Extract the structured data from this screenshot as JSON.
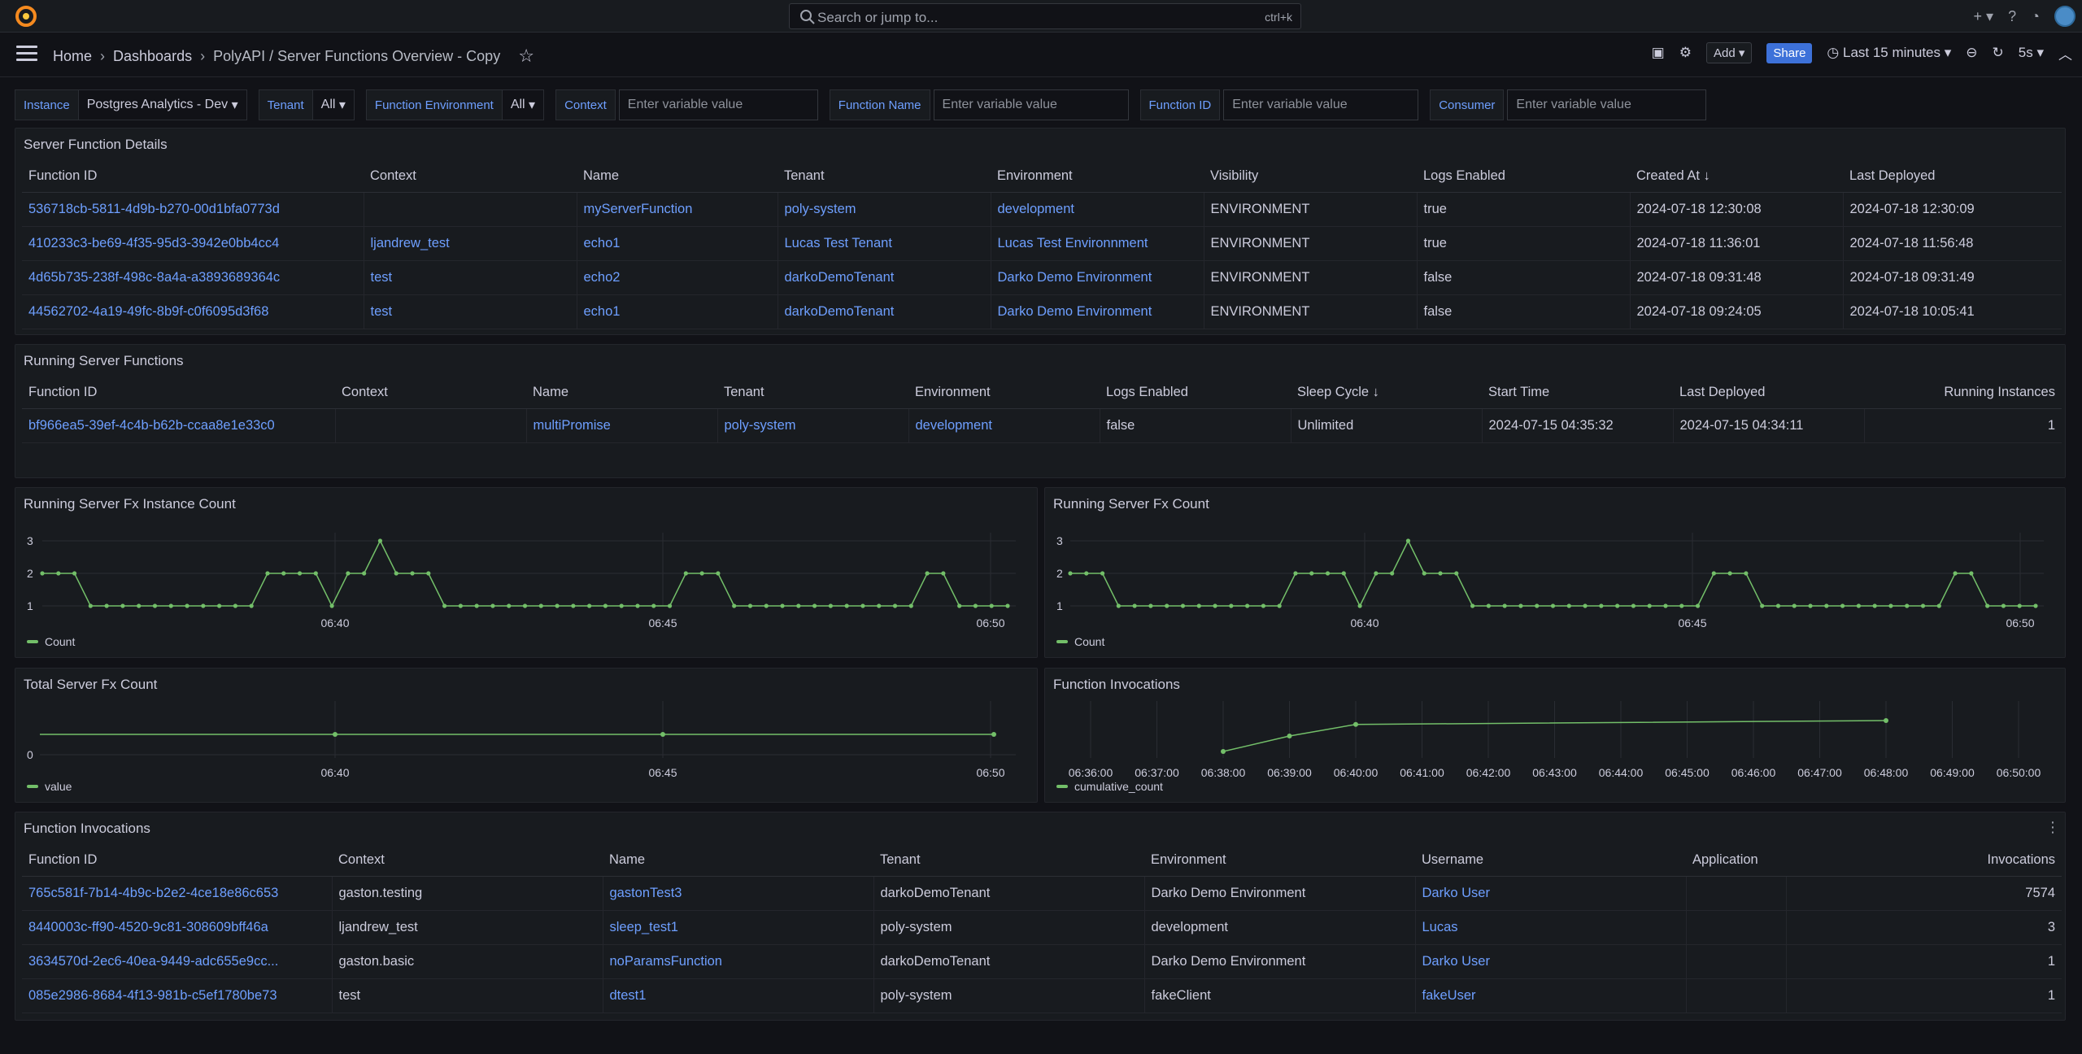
{
  "topbar": {
    "search_placeholder": "Search or jump to...",
    "search_shortcut": "ctrl+k"
  },
  "breadcrumb": {
    "home": "Home",
    "dashboards": "Dashboards",
    "current": "PolyAPI / Server Functions Overview - Copy"
  },
  "toolbar": {
    "add_label": "Add",
    "share_label": "Share",
    "time_range": "Last 15 minutes",
    "refresh_interval": "5s"
  },
  "variables": [
    {
      "label": "Instance",
      "value": "Postgres Analytics - Dev"
    },
    {
      "label": "Tenant",
      "value": "All"
    },
    {
      "label": "Function Environment",
      "value": "All"
    },
    {
      "label": "Context",
      "placeholder": "Enter variable value"
    },
    {
      "label": "Function Name",
      "placeholder": "Enter variable value"
    },
    {
      "label": "Function ID",
      "placeholder": "Enter variable value"
    },
    {
      "label": "Consumer",
      "placeholder": "Enter variable value"
    }
  ],
  "details": {
    "title": "Server Function Details",
    "columns": [
      "Function ID",
      "Context",
      "Name",
      "Tenant",
      "Environment",
      "Visibility",
      "Logs Enabled",
      "Created At",
      "Last Deployed"
    ],
    "rows": [
      [
        "536718cb-5811-4d9b-b270-00d1bfa0773d",
        "",
        "myServerFunction",
        "poly-system",
        "development",
        "ENVIRONMENT",
        "true",
        "2024-07-18 12:30:08",
        "2024-07-18 12:30:09"
      ],
      [
        "410233c3-be69-4f35-95d3-3942e0bb4cc4",
        "ljandrew_test",
        "echo1",
        "Lucas Test Tenant",
        "Lucas Test Environnment",
        "ENVIRONMENT",
        "true",
        "2024-07-18 11:36:01",
        "2024-07-18 11:56:48"
      ],
      [
        "4d65b735-238f-498c-8a4a-a3893689364c",
        "test",
        "echo2",
        "darkoDemoTenant",
        "Darko Demo Environment",
        "ENVIRONMENT",
        "false",
        "2024-07-18 09:31:48",
        "2024-07-18 09:31:49"
      ],
      [
        "44562702-4a19-49fc-8b9f-c0f6095d3f68",
        "test",
        "echo1",
        "darkoDemoTenant",
        "Darko Demo Environment",
        "ENVIRONMENT",
        "false",
        "2024-07-18 09:24:05",
        "2024-07-18 10:05:41"
      ]
    ]
  },
  "running": {
    "title": "Running Server Functions",
    "columns": [
      "Function ID",
      "Context",
      "Name",
      "Tenant",
      "Environment",
      "Logs Enabled",
      "Sleep Cycle",
      "Start Time",
      "Last Deployed",
      "Running Instances"
    ],
    "rows": [
      [
        "bf966ea5-39ef-4c4b-b62b-ccaa8e1e33c0",
        "",
        "multiPromise",
        "poly-system",
        "development",
        "false",
        "Unlimited",
        "2024-07-15 04:35:32",
        "2024-07-15 04:34:11",
        "1"
      ]
    ]
  },
  "invocations_table": {
    "title": "Function Invocations",
    "columns": [
      "Function ID",
      "Context",
      "Name",
      "Tenant",
      "Environment",
      "Username",
      "Application",
      "Invocations"
    ],
    "rows": [
      [
        "765c581f-7b14-4b9c-b2e2-4ce18e86c653",
        "gaston.testing",
        "gastonTest3",
        "darkoDemoTenant",
        "Darko Demo Environment",
        "Darko User",
        "",
        "7574"
      ],
      [
        "8440003c-ff90-4520-9c81-308609bff46a",
        "ljandrew_test",
        "sleep_test1",
        "poly-system",
        "development",
        "Lucas",
        "",
        "3"
      ],
      [
        "3634570d-2ec6-40ea-9449-adc655e9cc...",
        "gaston.basic",
        "noParamsFunction",
        "darkoDemoTenant",
        "Darko Demo Environment",
        "Darko User",
        "",
        "1"
      ],
      [
        "085e2986-8684-4f13-981b-c5ef1780be73",
        "test",
        "dtest1",
        "poly-system",
        "fakeClient",
        "fakeUser",
        "",
        "1"
      ]
    ]
  },
  "colors": {
    "series": "#73bf69",
    "link": "#6e9fff",
    "panel_bg": "#181b1f",
    "page_bg": "#111217"
  },
  "chart_data": [
    {
      "type": "line",
      "title": "Running Server Fx Instance Count",
      "x_ticks": [
        "06:40",
        "06:45",
        "06:50"
      ],
      "y_ticks": [
        "1",
        "2",
        "3"
      ],
      "ylim": [
        1,
        3
      ],
      "series": [
        {
          "name": "Count",
          "values": [
            2,
            2,
            2,
            1,
            1,
            1,
            1,
            1,
            1,
            1,
            1,
            1,
            1,
            1,
            2,
            2,
            2,
            2,
            1,
            2,
            2,
            3,
            2,
            2,
            2,
            1,
            1,
            1,
            1,
            1,
            1,
            1,
            1,
            1,
            1,
            1,
            1,
            1,
            1,
            1,
            2,
            2,
            2,
            1,
            1,
            1,
            1,
            1,
            1,
            1,
            1,
            1,
            1,
            1,
            1,
            2,
            2,
            1,
            1,
            1,
            1
          ]
        }
      ]
    },
    {
      "type": "line",
      "title": "Running Server Fx Count",
      "x_ticks": [
        "06:40",
        "06:45",
        "06:50"
      ],
      "y_ticks": [
        "1",
        "2",
        "3"
      ],
      "ylim": [
        1,
        3
      ],
      "series": [
        {
          "name": "Count",
          "values": [
            2,
            2,
            2,
            1,
            1,
            1,
            1,
            1,
            1,
            1,
            1,
            1,
            1,
            1,
            2,
            2,
            2,
            2,
            1,
            2,
            2,
            3,
            2,
            2,
            2,
            1,
            1,
            1,
            1,
            1,
            1,
            1,
            1,
            1,
            1,
            1,
            1,
            1,
            1,
            1,
            2,
            2,
            2,
            1,
            1,
            1,
            1,
            1,
            1,
            1,
            1,
            1,
            1,
            1,
            1,
            2,
            2,
            1,
            1,
            1,
            1
          ]
        }
      ]
    },
    {
      "type": "line",
      "title": "Total Server Fx Count",
      "x_ticks": [
        "06:40",
        "06:45",
        "06:50"
      ],
      "y_ticks": [
        "0"
      ],
      "series": [
        {
          "name": "value",
          "values": [
            1,
            1,
            1,
            1
          ]
        }
      ]
    },
    {
      "type": "line",
      "title": "Function Invocations",
      "x_ticks": [
        "06:36:00",
        "06:37:00",
        "06:38:00",
        "06:39:00",
        "06:40:00",
        "06:41:00",
        "06:42:00",
        "06:43:00",
        "06:44:00",
        "06:45:00",
        "06:46:00",
        "06:47:00",
        "06:48:00",
        "06:49:00",
        "06:50:00"
      ],
      "series": [
        {
          "name": "cumulative_count",
          "x": [
            "06:38:00",
            "06:39:00",
            "06:40:00",
            "06:48:00"
          ],
          "values": [
            7570,
            7574,
            7577,
            7578
          ]
        }
      ]
    }
  ]
}
